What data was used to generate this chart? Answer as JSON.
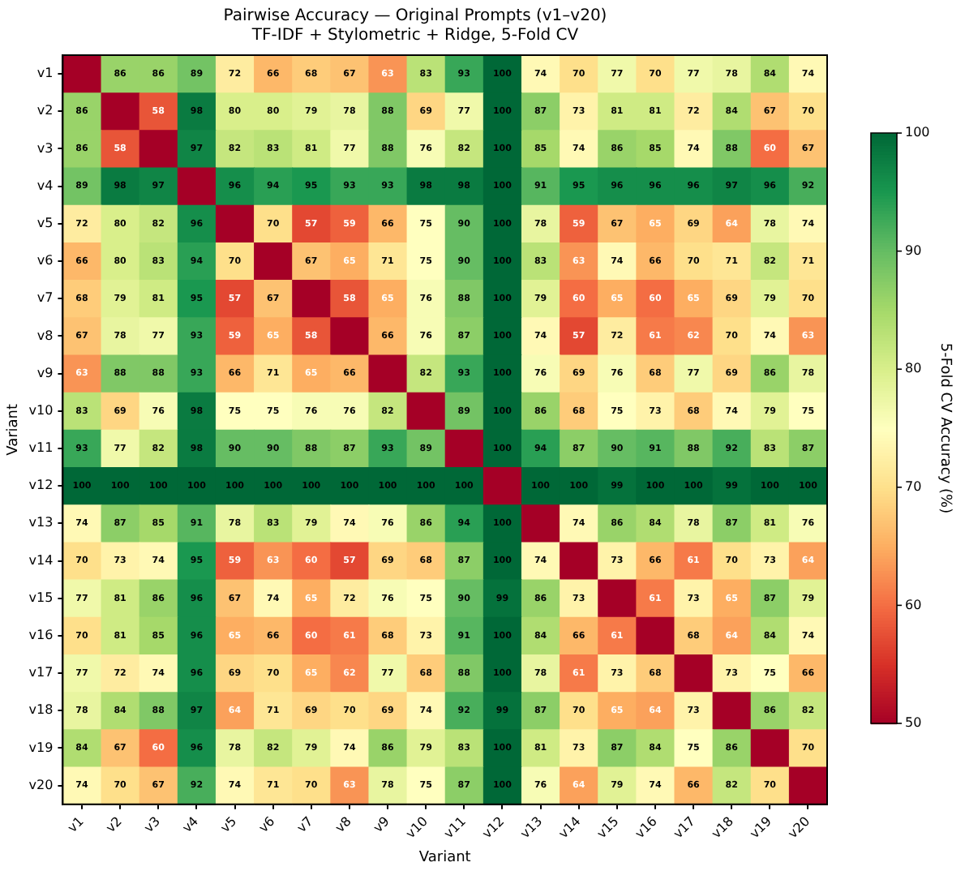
{
  "chart_data": {
    "type": "heatmap",
    "title": "Pairwise Accuracy — Original Prompts (v1–v20)",
    "subtitle": "TF-IDF + Stylometric + Ridge, 5-Fold CV",
    "xlabel": "Variant",
    "ylabel": "Variant",
    "clabel": "5-Fold CV Accuracy (%)",
    "categories": [
      "v1",
      "v2",
      "v3",
      "v4",
      "v5",
      "v6",
      "v7",
      "v8",
      "v9",
      "v10",
      "v11",
      "v12",
      "v13",
      "v14",
      "v15",
      "v16",
      "v17",
      "v18",
      "v19",
      "v20"
    ],
    "y_categories": [
      "v1",
      "v2",
      "v3",
      "v4",
      "v5",
      "v6",
      "v7",
      "v8",
      "v9",
      "v10",
      "v11",
      "v12",
      "v13",
      "v14",
      "v15",
      "v16",
      "v17",
      "v18",
      "v19",
      "v20"
    ],
    "cells": [
      [
        50,
        86,
        86,
        89,
        72,
        66,
        68,
        67,
        63,
        83,
        93,
        100,
        74,
        70,
        77,
        70,
        77,
        78,
        84,
        74
      ],
      [
        86,
        50,
        58,
        98,
        80,
        80,
        79,
        78,
        88,
        69,
        77,
        100,
        87,
        73,
        81,
        81,
        72,
        84,
        67,
        70
      ],
      [
        86,
        58,
        50,
        97,
        82,
        83,
        81,
        77,
        88,
        76,
        82,
        100,
        85,
        74,
        86,
        85,
        74,
        88,
        60,
        67
      ],
      [
        89,
        98,
        97,
        50,
        96,
        94,
        95,
        93,
        93,
        98,
        98,
        100,
        91,
        95,
        96,
        96,
        96,
        97,
        96,
        92
      ],
      [
        72,
        80,
        82,
        96,
        50,
        70,
        57,
        59,
        66,
        75,
        90,
        100,
        78,
        59,
        67,
        65,
        69,
        64,
        78,
        74
      ],
      [
        66,
        80,
        83,
        94,
        70,
        50,
        67,
        65,
        71,
        75,
        90,
        100,
        83,
        63,
        74,
        66,
        70,
        71,
        82,
        71
      ],
      [
        68,
        79,
        81,
        95,
        57,
        67,
        50,
        58,
        65,
        76,
        88,
        100,
        79,
        60,
        65,
        60,
        65,
        69,
        79,
        70
      ],
      [
        67,
        78,
        77,
        93,
        59,
        65,
        58,
        50,
        66,
        76,
        87,
        100,
        74,
        57,
        72,
        61,
        62,
        70,
        74,
        63
      ],
      [
        63,
        88,
        88,
        93,
        66,
        71,
        65,
        66,
        50,
        82,
        93,
        100,
        76,
        69,
        76,
        68,
        77,
        69,
        86,
        78
      ],
      [
        83,
        69,
        76,
        98,
        75,
        75,
        76,
        76,
        82,
        50,
        89,
        100,
        86,
        68,
        75,
        73,
        68,
        74,
        79,
        75
      ],
      [
        93,
        77,
        82,
        98,
        90,
        90,
        88,
        87,
        93,
        89,
        50,
        100,
        94,
        87,
        90,
        91,
        88,
        92,
        83,
        87
      ],
      [
        100,
        100,
        100,
        100,
        100,
        100,
        100,
        100,
        100,
        100,
        100,
        50,
        100,
        100,
        99,
        100,
        100,
        99,
        100,
        100
      ],
      [
        74,
        87,
        85,
        91,
        78,
        83,
        79,
        74,
        76,
        86,
        94,
        100,
        50,
        74,
        86,
        84,
        78,
        87,
        81,
        76
      ],
      [
        70,
        73,
        74,
        95,
        59,
        63,
        60,
        57,
        69,
        68,
        87,
        100,
        74,
        50,
        73,
        66,
        61,
        70,
        73,
        64
      ],
      [
        77,
        81,
        86,
        96,
        67,
        74,
        65,
        72,
        76,
        75,
        90,
        99,
        86,
        73,
        50,
        61,
        73,
        65,
        87,
        79
      ],
      [
        70,
        81,
        85,
        96,
        65,
        66,
        60,
        61,
        68,
        73,
        91,
        100,
        84,
        66,
        61,
        50,
        68,
        64,
        84,
        74
      ],
      [
        77,
        72,
        74,
        96,
        69,
        70,
        65,
        62,
        77,
        68,
        88,
        100,
        78,
        61,
        73,
        68,
        50,
        73,
        75,
        66
      ],
      [
        78,
        84,
        88,
        97,
        64,
        71,
        69,
        70,
        69,
        74,
        92,
        99,
        87,
        70,
        65,
        64,
        73,
        50,
        86,
        82
      ],
      [
        84,
        67,
        60,
        96,
        78,
        82,
        79,
        74,
        86,
        79,
        83,
        100,
        81,
        73,
        87,
        84,
        75,
        86,
        50,
        70
      ],
      [
        74,
        70,
        67,
        92,
        74,
        71,
        70,
        63,
        78,
        75,
        87,
        100,
        76,
        64,
        79,
        74,
        66,
        82,
        70,
        50
      ]
    ],
    "cell_labels": [
      [
        null,
        "86",
        "86",
        "89",
        "72",
        "66",
        "68",
        "67",
        "63",
        "83",
        "93",
        "100",
        "74",
        "70",
        "77",
        "70",
        "77",
        "78",
        "84",
        "74"
      ],
      [
        "86",
        null,
        "58",
        "98",
        "80",
        "80",
        "79",
        "78",
        "88",
        "69",
        "77",
        "100",
        "87",
        "73",
        "81",
        "81",
        "72",
        "84",
        "67",
        "70"
      ],
      [
        "86",
        "58",
        null,
        "97",
        "82",
        "83",
        "81",
        "77",
        "88",
        "76",
        "82",
        "100",
        "85",
        "74",
        "86",
        "85",
        "74",
        "88",
        "60",
        "67"
      ],
      [
        "89",
        "98",
        "97",
        null,
        "96",
        "94",
        "95",
        "93",
        "93",
        "98",
        "98",
        "100",
        "91",
        "95",
        "96",
        "96",
        "96",
        "97",
        "96",
        "92"
      ],
      [
        "72",
        "80",
        "82",
        "96",
        null,
        "70",
        "57",
        "59",
        "66",
        "75",
        "90",
        "100",
        "78",
        "59",
        "67",
        "65",
        "69",
        "64",
        "78",
        "74"
      ],
      [
        "66",
        "80",
        "83",
        "94",
        "70",
        null,
        "67",
        "65",
        "71",
        "75",
        "90",
        "100",
        "83",
        "63",
        "74",
        "66",
        "70",
        "71",
        "82",
        "71"
      ],
      [
        "68",
        "79",
        "81",
        "95",
        "57",
        "67",
        null,
        "58",
        "65",
        "76",
        "88",
        "100",
        "79",
        "60",
        "65",
        "60",
        "65",
        "69",
        "79",
        "70"
      ],
      [
        "67",
        "78",
        "77",
        "93",
        "59",
        "65",
        "58",
        null,
        "66",
        "76",
        "87",
        "100",
        "74",
        "57",
        "72",
        "61",
        "62",
        "70",
        "74",
        "63"
      ],
      [
        "63",
        "88",
        "88",
        "93",
        "66",
        "71",
        "65",
        "66",
        null,
        "82",
        "93",
        "100",
        "76",
        "69",
        "76",
        "68",
        "77",
        "69",
        "86",
        "78"
      ],
      [
        "83",
        "69",
        "76",
        "98",
        "75",
        "75",
        "76",
        "76",
        "82",
        null,
        "89",
        "100",
        "86",
        "68",
        "75",
        "73",
        "68",
        "74",
        "79",
        "75"
      ],
      [
        "93",
        "77",
        "82",
        "98",
        "90",
        "90",
        "88",
        "87",
        "93",
        "89",
        null,
        "100",
        "94",
        "87",
        "90",
        "91",
        "88",
        "92",
        "83",
        "87"
      ],
      [
        "100",
        "100",
        "100",
        "100",
        "100",
        "100",
        "100",
        "100",
        "100",
        "100",
        "100",
        null,
        "100",
        "100",
        "99",
        "100",
        "100",
        "99",
        "100",
        "100"
      ],
      [
        "74",
        "87",
        "85",
        "91",
        "78",
        "83",
        "79",
        "74",
        "76",
        "86",
        "94",
        "100",
        null,
        "74",
        "86",
        "84",
        "78",
        "87",
        "81",
        "76"
      ],
      [
        "70",
        "73",
        "74",
        "95",
        "59",
        "63",
        "60",
        "57",
        "69",
        "68",
        "87",
        "100",
        "74",
        null,
        "73",
        "66",
        "61",
        "70",
        "73",
        "64"
      ],
      [
        "77",
        "81",
        "86",
        "96",
        "67",
        "74",
        "65",
        "72",
        "76",
        "75",
        "90",
        "99",
        "86",
        "73",
        null,
        "61",
        "73",
        "65",
        "87",
        "79"
      ],
      [
        "70",
        "81",
        "85",
        "96",
        "65",
        "66",
        "60",
        "61",
        "68",
        "73",
        "91",
        "100",
        "84",
        "66",
        "61",
        null,
        "68",
        "64",
        "84",
        "74"
      ],
      [
        "77",
        "72",
        "74",
        "96",
        "69",
        "70",
        "65",
        "62",
        "77",
        "68",
        "88",
        "100",
        "78",
        "61",
        "73",
        "68",
        null,
        "73",
        "75",
        "66"
      ],
      [
        "78",
        "84",
        "88",
        "97",
        "64",
        "71",
        "69",
        "70",
        "69",
        "74",
        "92",
        "99",
        "87",
        "70",
        "65",
        "64",
        "73",
        null,
        "86",
        "82"
      ],
      [
        "84",
        "67",
        "60",
        "96",
        "78",
        "82",
        "79",
        "74",
        "86",
        "79",
        "83",
        "100",
        "81",
        "73",
        "87",
        "84",
        "75",
        "86",
        null,
        "70"
      ],
      [
        "74",
        "70",
        "67",
        "92",
        "74",
        "71",
        "70",
        "63",
        "78",
        "75",
        "87",
        "100",
        "76",
        "64",
        "79",
        "74",
        "66",
        "82",
        "70",
        null
      ]
    ],
    "clim": [
      50,
      100
    ],
    "cticks": [
      50,
      60,
      70,
      80,
      90,
      100
    ]
  }
}
